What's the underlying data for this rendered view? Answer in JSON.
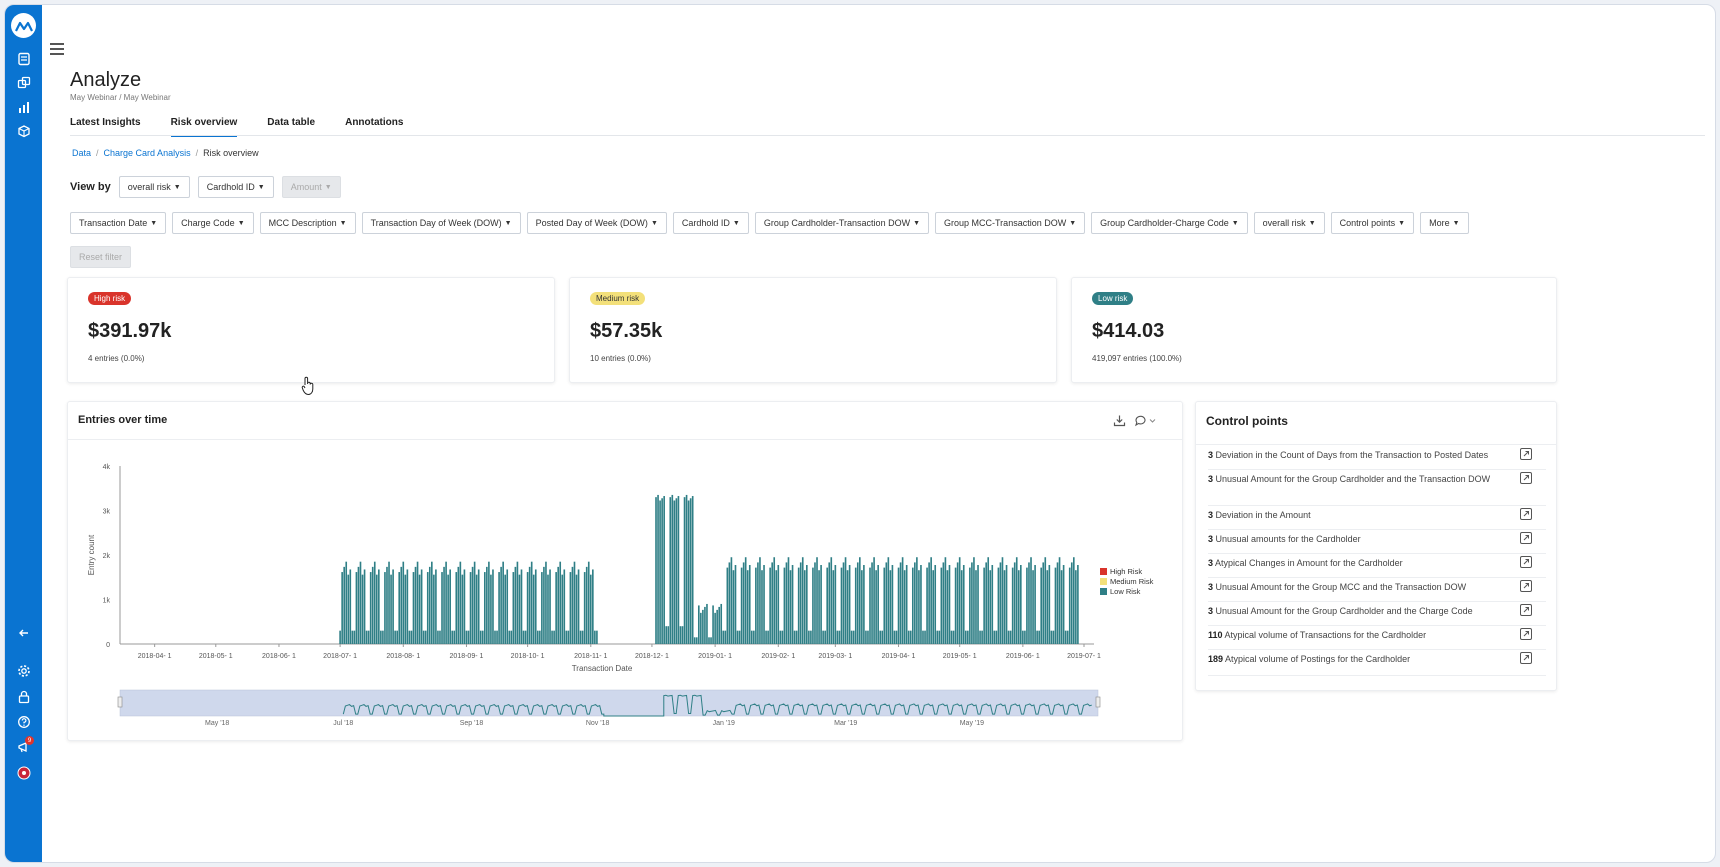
{
  "page": {
    "title": "Analyze",
    "subtitle": "May Webinar / May Webinar",
    "tabs": [
      {
        "label": "Latest Insights",
        "active": false
      },
      {
        "label": "Risk overview",
        "active": true
      },
      {
        "label": "Data table",
        "active": false
      },
      {
        "label": "Annotations",
        "active": false
      }
    ]
  },
  "breadcrumb": {
    "items": [
      "Data",
      "Charge Card Analysis",
      "Risk overview"
    ],
    "separator": "/"
  },
  "view_by": {
    "label": "View by",
    "options": [
      {
        "label": "overall risk",
        "disabled": false
      },
      {
        "label": "Cardhold ID",
        "disabled": false
      },
      {
        "label": "Amount",
        "disabled": true
      }
    ]
  },
  "filters": {
    "items": [
      "Transaction Date",
      "Charge Code",
      "MCC Description",
      "Transaction Day of Week (DOW)",
      "Posted Day of Week (DOW)",
      "Cardhold ID",
      "Group Cardholder-Transaction DOW",
      "Group MCC-Transaction DOW",
      "Group Cardholder-Charge Code",
      "overall risk",
      "Control points",
      "More"
    ],
    "reset_label": "Reset filter"
  },
  "risk_cards": [
    {
      "badge": "High risk",
      "value": "$391.97k",
      "entries": "4 entries (0.0%)",
      "color": "#d9342b",
      "text_color": "#ffffff"
    },
    {
      "badge": "Medium risk",
      "value": "$57.35k",
      "entries": "10 entries (0.0%)",
      "color": "#f3e07a",
      "text_color": "#333333"
    },
    {
      "badge": "Low risk",
      "value": "$414.03",
      "entries": "419,097 entries (100.0%)",
      "color": "#2f7f86",
      "text_color": "#ffffff"
    }
  ],
  "entries_panel": {
    "title": "Entries over time",
    "icons": [
      "download-icon",
      "comment-icon",
      "chevron-down-icon"
    ]
  },
  "chart_data": {
    "type": "bar",
    "title": "",
    "xlabel": "Transaction Date",
    "ylabel": "Entry count",
    "ylim": [
      0,
      4000
    ],
    "y_ticks": [
      "0",
      "1k",
      "2k",
      "3k",
      "4k"
    ],
    "x_ticks": [
      "2018-04- 1",
      "2018-05- 1",
      "2018-06- 1",
      "2018-07- 1",
      "2018-08- 1",
      "2018-09- 1",
      "2018-10- 1",
      "2018-11- 1",
      "2018-12- 1",
      "2019-01- 1",
      "2019-02- 1",
      "2019-03- 1",
      "2019-04- 1",
      "2019-05- 1",
      "2019-06- 1",
      "2019-07- 1"
    ],
    "legend": [
      "High Risk",
      "Medium Risk",
      "Low Risk"
    ],
    "legend_colors": [
      "#d9342b",
      "#f3e07a",
      "#2f7f86"
    ],
    "legend_position": "right",
    "navigator_labels": [
      "May '18",
      "Jul '18",
      "Sep '18",
      "Nov '18",
      "Jan '19",
      "Mar '19",
      "May '19"
    ],
    "x_start": "2018-03-15",
    "x_end": "2019-07-01",
    "segments": [
      {
        "start": "2018-07-01",
        "end": "2018-11-04",
        "weekday_level": 1500,
        "weekend_level": 300,
        "peak": 1850
      },
      {
        "start": "2018-12-03",
        "end": "2018-12-21",
        "weekday_level": 3200,
        "weekend_level": 400,
        "peak": 3350
      },
      {
        "start": "2018-12-22",
        "end": "2019-01-04",
        "weekday_level": 700,
        "weekend_level": 150,
        "peak": 900
      },
      {
        "start": "2019-01-05",
        "end": "2019-06-28",
        "weekday_level": 1600,
        "weekend_level": 300,
        "peak": 1950
      }
    ],
    "series": [
      {
        "name": "Low Risk",
        "values": []
      }
    ]
  },
  "control_points": {
    "title": "Control points",
    "items": [
      {
        "count": "3",
        "text": "Deviation in the Count of Days from the Transaction to Posted Dates"
      },
      {
        "count": "3",
        "text": "Unusual Amount for the Group Cardholder and the Transaction DOW"
      },
      {
        "count": "3",
        "text": "Deviation in the Amount"
      },
      {
        "count": "3",
        "text": "Unusual amounts for the Cardholder"
      },
      {
        "count": "3",
        "text": "Atypical Changes in Amount for the Cardholder"
      },
      {
        "count": "3",
        "text": "Unusual Amount for the Group MCC and the Transaction DOW"
      },
      {
        "count": "3",
        "text": "Unusual Amount for the Group Cardholder and the Charge Code"
      },
      {
        "count": "110",
        "text": "Atypical volume of Transactions for the Cardholder"
      },
      {
        "count": "189",
        "text": "Atypical volume of Postings for the Cardholder"
      }
    ]
  },
  "sidebar": {
    "top_icons": [
      "document-icon",
      "layers-icon",
      "bar-chart-icon",
      "cube-icon"
    ],
    "bottom_icons": [
      "collapse-arrow-icon",
      "gear-icon",
      "lock-icon",
      "help-icon",
      "announcement-icon",
      "user-avatar-icon"
    ],
    "notification_badge": "9"
  }
}
